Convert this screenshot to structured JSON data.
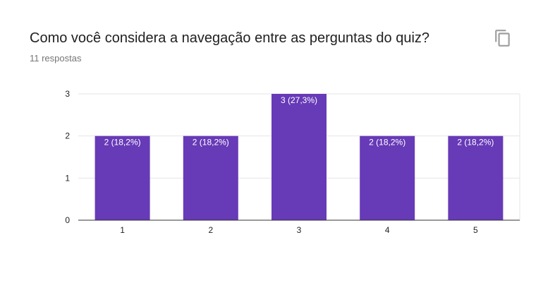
{
  "question": {
    "title": "Como você considera a navegação entre as perguntas do quiz?",
    "responses": "11 respostas"
  },
  "icons": {
    "copy": "copy-icon"
  },
  "colors": {
    "bar": "#673ab7",
    "grid": "#e6e6e6",
    "axis": "#333333",
    "bar_label": "#ffffff",
    "tick_label": "#222222"
  },
  "chart_data": {
    "type": "bar",
    "categories": [
      "1",
      "2",
      "3",
      "4",
      "5"
    ],
    "values": [
      2,
      2,
      3,
      2,
      2
    ],
    "data_labels": [
      "2 (18,2%)",
      "2 (18,2%)",
      "3 (27,3%)",
      "2 (18,2%)",
      "2 (18,2%)"
    ],
    "yticks": [
      0,
      1,
      2,
      3
    ],
    "ylim": [
      0,
      3
    ],
    "grid": true,
    "legend": "none"
  }
}
